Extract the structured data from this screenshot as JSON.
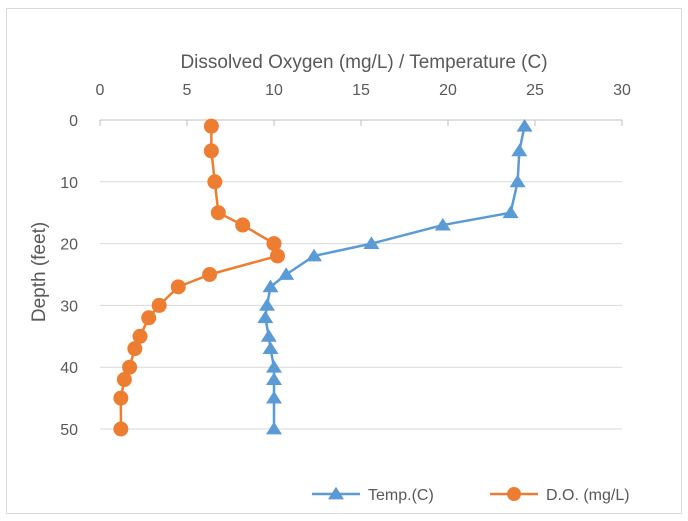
{
  "chart_data": {
    "type": "scatter",
    "title": "",
    "xlabel": "Dissolved Oxygen (mg/L) / Temperature (C)",
    "ylabel": "Depth (feet)",
    "xlim": [
      0,
      30
    ],
    "ylim": [
      0,
      50
    ],
    "y_reversed": true,
    "x_axis_position": "top",
    "x_ticks": [
      "0",
      "5",
      "10",
      "15",
      "20",
      "25",
      "30"
    ],
    "y_ticks": [
      "0",
      "10",
      "20",
      "30",
      "40",
      "50"
    ],
    "grid": "horizontal",
    "legend_position": "bottom-right",
    "series": [
      {
        "name": "Temp.(C)",
        "color": "#5b9bd5",
        "marker": "triangle",
        "points": [
          [
            24.4,
            1
          ],
          [
            24.1,
            5
          ],
          [
            24.0,
            10
          ],
          [
            23.6,
            15
          ],
          [
            19.7,
            17
          ],
          [
            15.6,
            20
          ],
          [
            12.3,
            22
          ],
          [
            10.7,
            25
          ],
          [
            9.8,
            27
          ],
          [
            9.6,
            30
          ],
          [
            9.5,
            32
          ],
          [
            9.7,
            35
          ],
          [
            9.8,
            37
          ],
          [
            10.0,
            40
          ],
          [
            10.0,
            42
          ],
          [
            10.0,
            45
          ],
          [
            10.0,
            50
          ]
        ]
      },
      {
        "name": "D.O. (mg/L)",
        "color": "#ed7d31",
        "marker": "circle",
        "points": [
          [
            6.4,
            1
          ],
          [
            6.4,
            5
          ],
          [
            6.6,
            10
          ],
          [
            6.8,
            15
          ],
          [
            8.2,
            17
          ],
          [
            10.0,
            20
          ],
          [
            10.2,
            22
          ],
          [
            6.3,
            25
          ],
          [
            4.5,
            27
          ],
          [
            3.4,
            30
          ],
          [
            2.8,
            32
          ],
          [
            2.3,
            35
          ],
          [
            2.0,
            37
          ],
          [
            1.7,
            40
          ],
          [
            1.4,
            42
          ],
          [
            1.2,
            45
          ],
          [
            1.2,
            50
          ]
        ]
      }
    ]
  }
}
